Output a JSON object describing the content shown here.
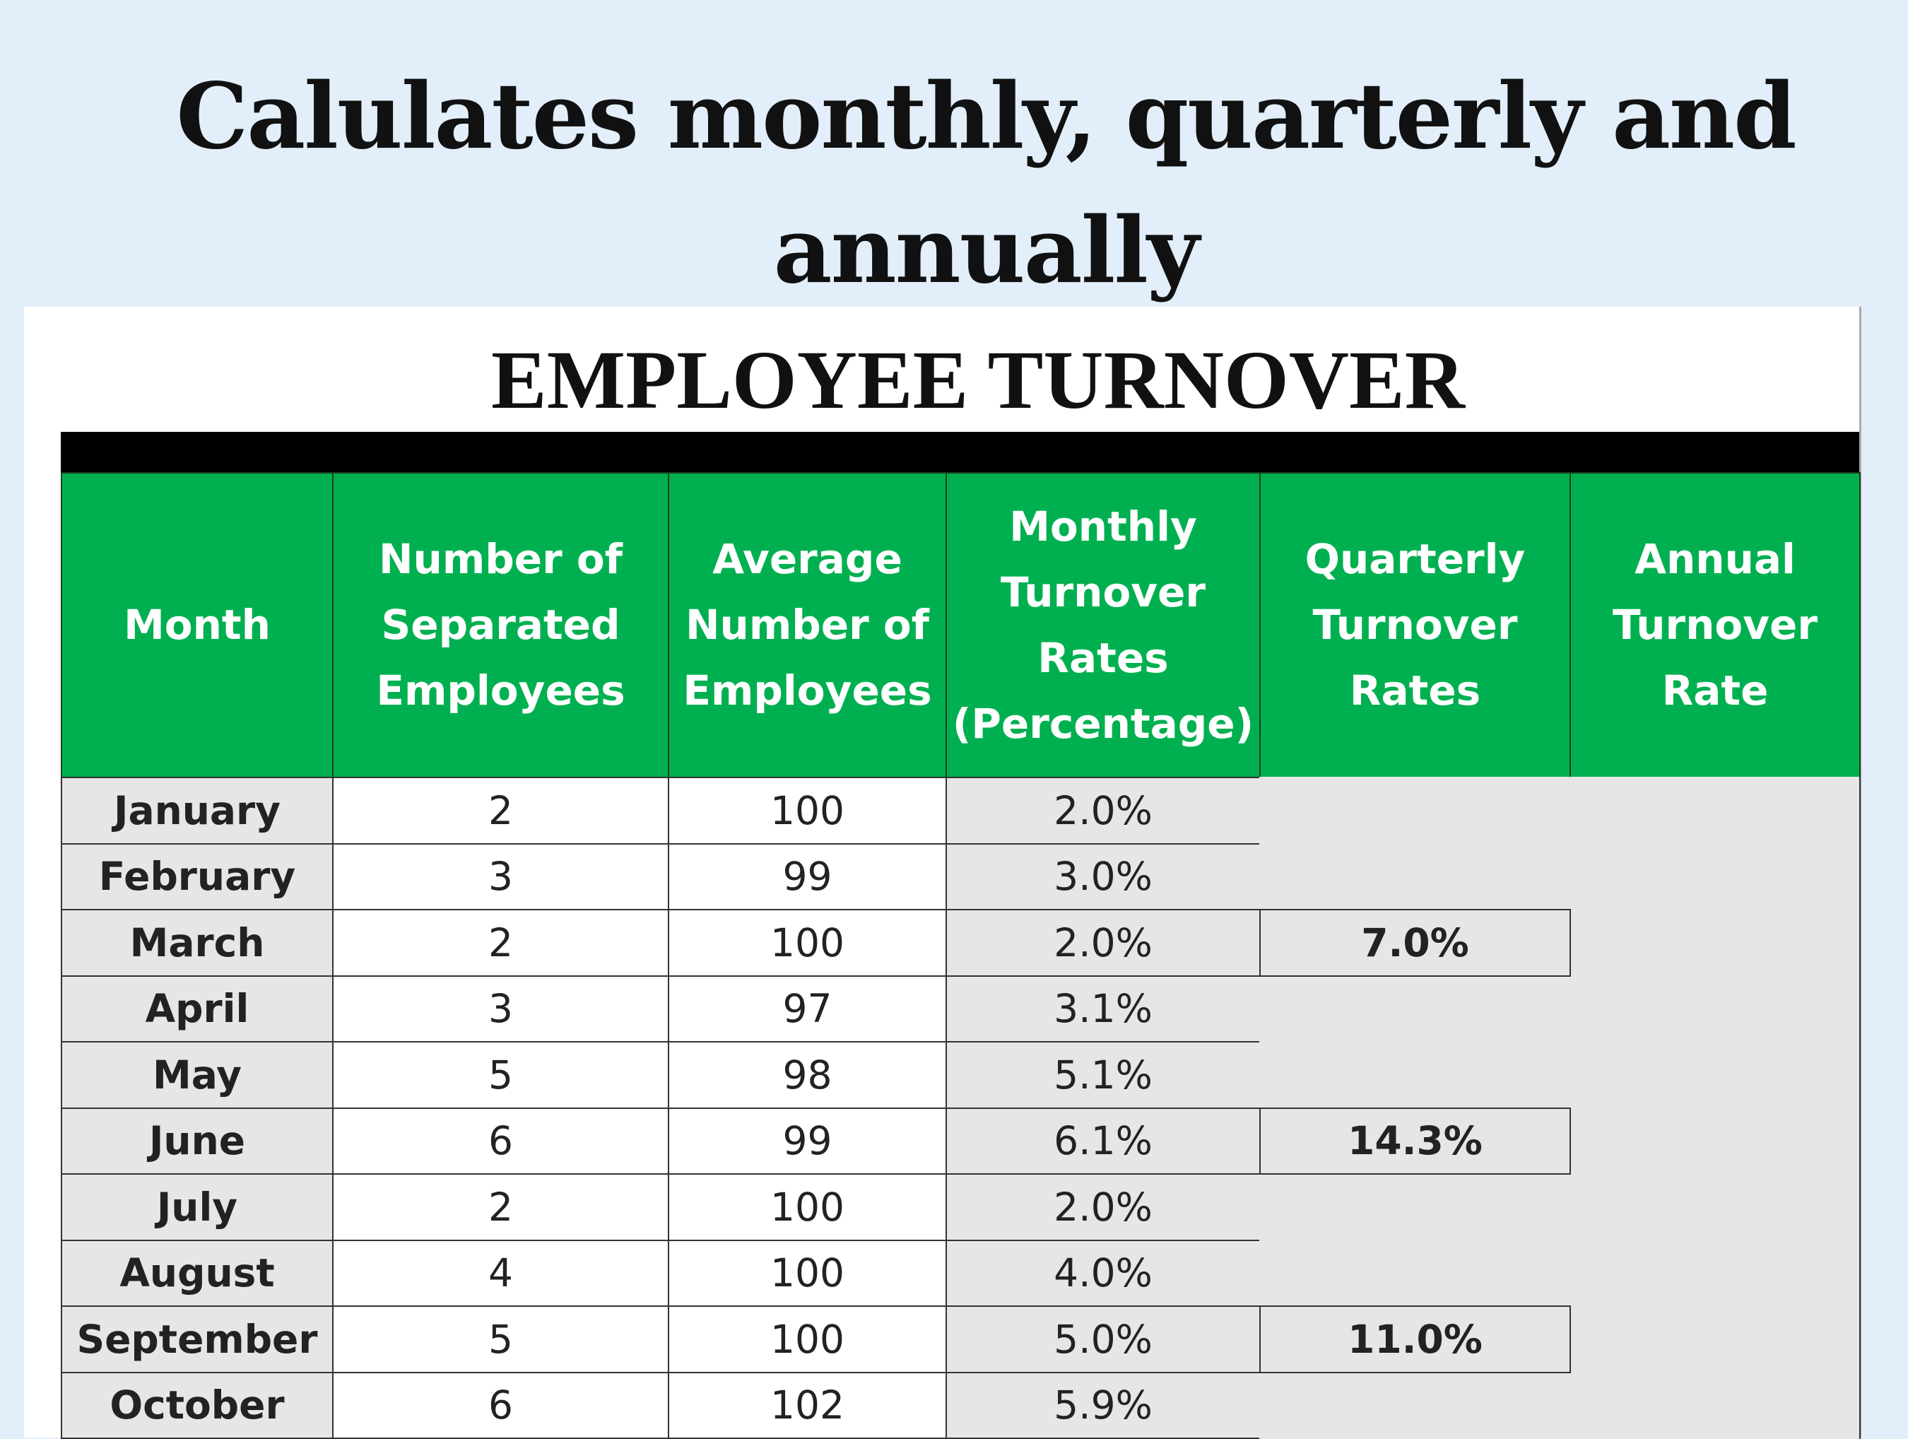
{
  "header": {
    "title_lines": [
      "Calulates monthly, quarterly and",
      "annually"
    ]
  },
  "table": {
    "title": "EMPLOYEE TURNOVER",
    "columns": [
      [
        "Month"
      ],
      [
        "Number of",
        "Separated",
        "Employees"
      ],
      [
        "Average",
        "Number of",
        "Employees"
      ],
      [
        "Monthly",
        "Turnover",
        "Rates",
        "(Percentage)"
      ],
      [
        "Quarterly",
        "Turnover",
        "Rates"
      ],
      [
        "Annual",
        "Turnover",
        "Rate"
      ]
    ],
    "rows": [
      [
        "January",
        2,
        100,
        "2.0%"
      ],
      [
        "February",
        3,
        99,
        "3.0%"
      ],
      [
        "March",
        2,
        100,
        "2.0%"
      ],
      [
        "April",
        3,
        97,
        "3.1%"
      ],
      [
        "May",
        5,
        98,
        "5.1%"
      ],
      [
        "June",
        6,
        99,
        "6.1%"
      ],
      [
        "July",
        2,
        100,
        "2.0%"
      ],
      [
        "August",
        4,
        100,
        "4.0%"
      ],
      [
        "September",
        5,
        100,
        "5.0%"
      ],
      [
        "October",
        6,
        102,
        "5.9%"
      ]
    ],
    "quarterly": [
      {
        "row": "March",
        "value": "7.0%"
      },
      {
        "row": "June",
        "value": "14.3%"
      },
      {
        "row": "September",
        "value": "11.0%"
      }
    ]
  }
}
